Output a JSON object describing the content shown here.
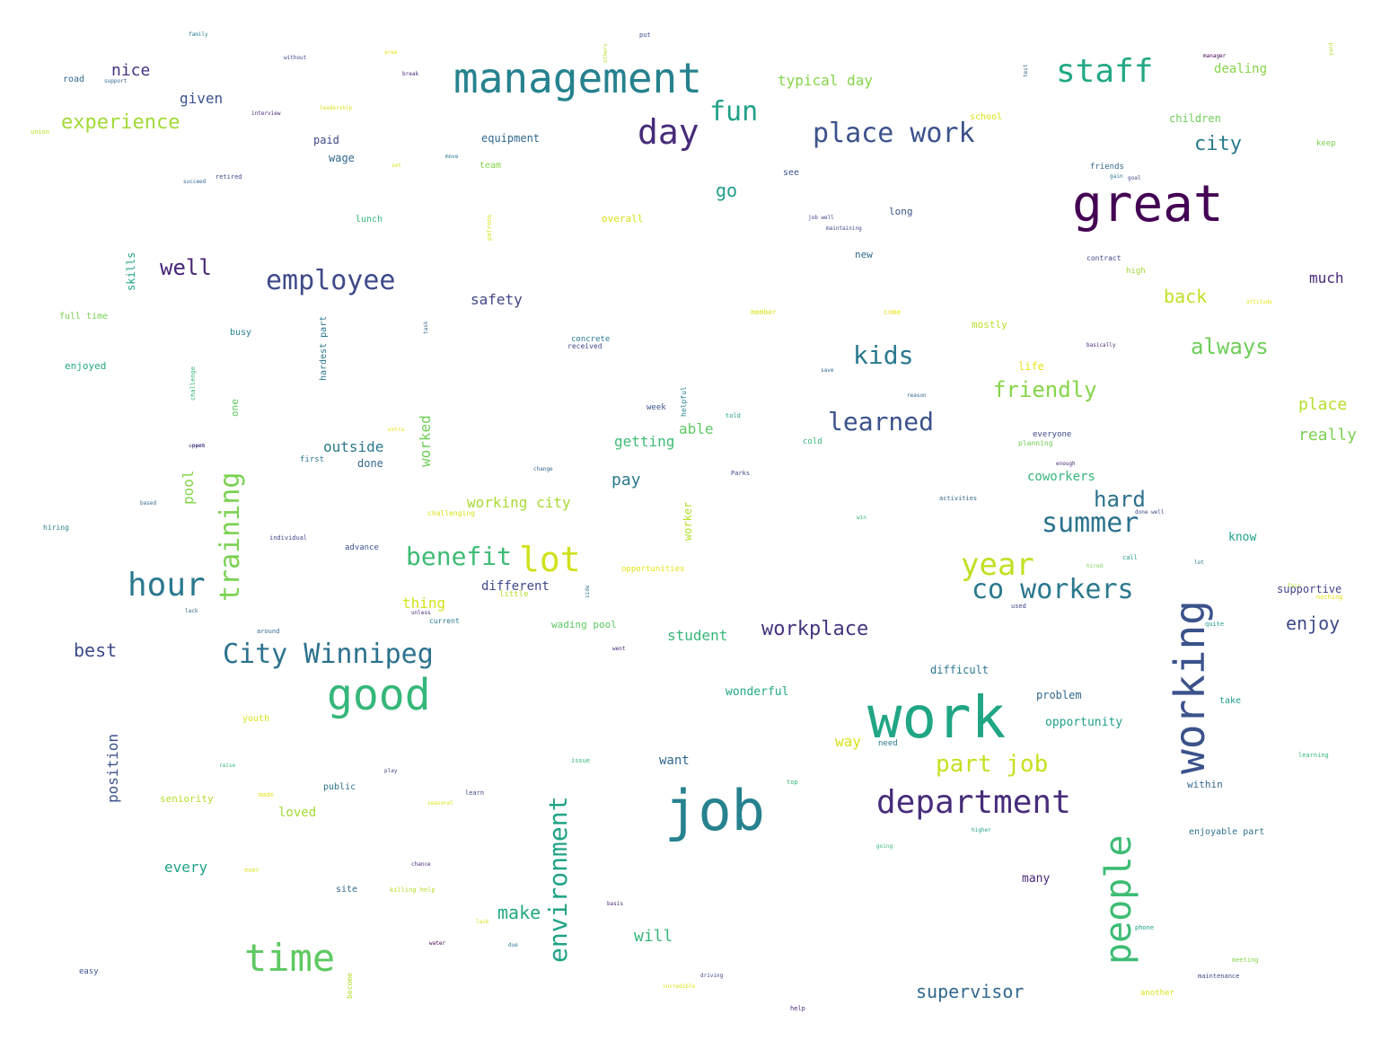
{
  "palette": {
    "dark_purple": "#440154",
    "purple": "#482878",
    "indigo": "#3e4a89",
    "blue": "#31688e",
    "teal": "#26828e",
    "cyan_green": "#1f9e89",
    "green": "#35b779",
    "light_green": "#6ece58",
    "yellow_green": "#b5de2b",
    "yellow": "#e3e418"
  },
  "words": [
    {
      "text": "work",
      "color": "#21a685"
    },
    {
      "text": "great",
      "color": "#440154"
    },
    {
      "text": "job",
      "color": "#26828e"
    },
    {
      "text": "management",
      "color": "#26828e"
    },
    {
      "text": "working",
      "color": "#3b528b"
    },
    {
      "text": "good",
      "color": "#35b779"
    },
    {
      "text": "time",
      "color": "#5ec962"
    },
    {
      "text": "department",
      "color": "#472d7b"
    },
    {
      "text": "people",
      "color": "#3dbc74"
    },
    {
      "text": "staff",
      "color": "#22a884"
    },
    {
      "text": "day",
      "color": "#472c7a"
    },
    {
      "text": "place work",
      "color": "#3b528b"
    },
    {
      "text": "co workers",
      "color": "#2a788e"
    },
    {
      "text": "City Winnipeg",
      "color": "#2c728e"
    },
    {
      "text": "hour",
      "color": "#2a788e"
    },
    {
      "text": "employee",
      "color": "#3e4a89"
    },
    {
      "text": "training",
      "color": "#7ad151"
    },
    {
      "text": "lot",
      "color": "#d0e11c"
    },
    {
      "text": "year",
      "color": "#c2df23"
    },
    {
      "text": "summer",
      "color": "#2c728e"
    },
    {
      "text": "environment",
      "color": "#20a386"
    },
    {
      "text": "fun",
      "color": "#1fa188"
    },
    {
      "text": "kids",
      "color": "#2a788e"
    },
    {
      "text": "learned",
      "color": "#3b528b"
    },
    {
      "text": "benefit",
      "color": "#3dbc74"
    },
    {
      "text": "friendly",
      "color": "#86d549"
    },
    {
      "text": "part job",
      "color": "#c8e020"
    },
    {
      "text": "well",
      "color": "#482677"
    },
    {
      "text": "experience",
      "color": "#a2da37"
    },
    {
      "text": "always",
      "color": "#6ece58"
    },
    {
      "text": "workplace",
      "color": "#46337f"
    },
    {
      "text": "hard",
      "color": "#2c728e"
    },
    {
      "text": "supervisor",
      "color": "#31688e"
    },
    {
      "text": "back",
      "color": "#c2df23"
    },
    {
      "text": "city",
      "color": "#297b8e"
    },
    {
      "text": "best",
      "color": "#3e4a89"
    },
    {
      "text": "enjoy",
      "color": "#3e4a89"
    },
    {
      "text": "place",
      "color": "#b5de2b"
    },
    {
      "text": "really",
      "color": "#7ad151"
    },
    {
      "text": "go",
      "color": "#1f9e89"
    },
    {
      "text": "nice",
      "color": "#46337f"
    },
    {
      "text": "given",
      "color": "#3b528b"
    },
    {
      "text": "safety",
      "color": "#414487"
    },
    {
      "text": "make",
      "color": "#22a884"
    },
    {
      "text": "will",
      "color": "#35b779"
    },
    {
      "text": "every",
      "color": "#1fa188"
    },
    {
      "text": "pay",
      "color": "#2a788e"
    },
    {
      "text": "getting",
      "color": "#3dbc74"
    },
    {
      "text": "able",
      "color": "#5ec962"
    },
    {
      "text": "student",
      "color": "#35b779"
    },
    {
      "text": "typical day",
      "color": "#86d549"
    },
    {
      "text": "dealing",
      "color": "#86d549"
    },
    {
      "text": "much",
      "color": "#482878"
    },
    {
      "text": "outside",
      "color": "#2a788e"
    },
    {
      "text": "done",
      "color": "#31688e"
    },
    {
      "text": "thing",
      "color": "#d2e21b"
    },
    {
      "text": "different",
      "color": "#3e4a89"
    },
    {
      "text": "working city",
      "color": "#a8db34"
    },
    {
      "text": "coworkers",
      "color": "#35b779"
    },
    {
      "text": "worked",
      "color": "#6ece58"
    },
    {
      "text": "pool",
      "color": "#86d549"
    },
    {
      "text": "position",
      "color": "#3b528b"
    },
    {
      "text": "wonderful",
      "color": "#22a884"
    },
    {
      "text": "loved",
      "color": "#a2da37"
    },
    {
      "text": "want",
      "color": "#31688e"
    },
    {
      "text": "way",
      "color": "#d8e219"
    },
    {
      "text": "know",
      "color": "#1fa188"
    },
    {
      "text": "supportive",
      "color": "#414487"
    },
    {
      "text": "problem",
      "color": "#31688e"
    },
    {
      "text": "opportunity",
      "color": "#1f9e89"
    },
    {
      "text": "difficult",
      "color": "#2a788e"
    },
    {
      "text": "children",
      "color": "#6ece58"
    },
    {
      "text": "wading pool",
      "color": "#5ec962"
    },
    {
      "text": "many",
      "color": "#482878"
    },
    {
      "text": "paid",
      "color": "#3e4a89"
    },
    {
      "text": "wage",
      "color": "#31688e"
    },
    {
      "text": "equipment",
      "color": "#31688e"
    },
    {
      "text": "road",
      "color": "#31688e"
    },
    {
      "text": "skills",
      "color": "#20a386"
    },
    {
      "text": "hardest part",
      "color": "#2a788e"
    },
    {
      "text": "full time",
      "color": "#7ad151"
    },
    {
      "text": "enjoyed",
      "color": "#22a884"
    },
    {
      "text": "busy",
      "color": "#26828e"
    },
    {
      "text": "one",
      "color": "#5ec962"
    },
    {
      "text": "lunch",
      "color": "#35b779"
    },
    {
      "text": "overall",
      "color": "#d8e219"
    },
    {
      "text": "long",
      "color": "#3b528b"
    },
    {
      "text": "new",
      "color": "#31688e"
    },
    {
      "text": "mostly",
      "color": "#b5de2b"
    },
    {
      "text": "life",
      "color": "#e5e419"
    },
    {
      "text": "concrete",
      "color": "#2a788e"
    },
    {
      "text": "received",
      "color": "#3e4a89"
    },
    {
      "text": "week",
      "color": "#3b528b"
    },
    {
      "text": "helpful",
      "color": "#26828e"
    },
    {
      "text": "everyone",
      "color": "#3e4a89"
    },
    {
      "text": "planning",
      "color": "#6ece58"
    },
    {
      "text": "team",
      "color": "#86d549"
    },
    {
      "text": "see",
      "color": "#3b528b"
    },
    {
      "text": "school",
      "color": "#d8e219"
    },
    {
      "text": "friends",
      "color": "#31688e"
    },
    {
      "text": "keep",
      "color": "#7ad151"
    },
    {
      "text": "high",
      "color": "#a2da37"
    },
    {
      "text": "contract",
      "color": "#3e4a89"
    },
    {
      "text": "within",
      "color": "#31688e"
    },
    {
      "text": "enjoyable part",
      "color": "#2c728e"
    },
    {
      "text": "take",
      "color": "#1f9e89"
    },
    {
      "text": "seniority",
      "color": "#b5de2b"
    },
    {
      "text": "public",
      "color": "#2c728e"
    },
    {
      "text": "youth",
      "color": "#d8e219"
    },
    {
      "text": "site",
      "color": "#31688e"
    },
    {
      "text": "worker",
      "color": "#b5de2b"
    },
    {
      "text": "advance",
      "color": "#3b528b"
    },
    {
      "text": "individual",
      "color": "#3e4a89"
    },
    {
      "text": "first",
      "color": "#2a788e"
    },
    {
      "text": "cold",
      "color": "#35b779"
    },
    {
      "text": "opportunities",
      "color": "#e5e419"
    },
    {
      "text": "challenging",
      "color": "#d8e219"
    },
    {
      "text": "little",
      "color": "#b5de2b"
    },
    {
      "text": "current",
      "color": "#2a788e"
    },
    {
      "text": "easy",
      "color": "#3b528b"
    },
    {
      "text": "another",
      "color": "#d8e219"
    },
    {
      "text": "maintenance",
      "color": "#3e4a89"
    },
    {
      "text": "meeting",
      "color": "#86d549"
    },
    {
      "text": "learning",
      "color": "#35b779"
    },
    {
      "text": "help",
      "color": "#482878"
    },
    {
      "text": "become",
      "color": "#b5de2b"
    },
    {
      "text": "hiring",
      "color": "#26828e"
    },
    {
      "text": "union",
      "color": "#b5de2b"
    },
    {
      "text": "support",
      "color": "#31688e"
    },
    {
      "text": "family",
      "color": "#26828e"
    },
    {
      "text": "without",
      "color": "#3e4a89"
    },
    {
      "text": "break",
      "color": "#482878"
    },
    {
      "text": "interview",
      "color": "#482878"
    },
    {
      "text": "leadership",
      "color": "#d8e219"
    },
    {
      "text": "put",
      "color": "#3e4a89"
    },
    {
      "text": "others",
      "color": "#b5de2b"
    },
    {
      "text": "manager",
      "color": "#440154"
    },
    {
      "text": "yard",
      "color": "#b5de2b"
    },
    {
      "text": "test",
      "color": "#31688e"
    },
    {
      "text": "area",
      "color": "#e5e419"
    },
    {
      "text": "succeed",
      "color": "#31688e"
    },
    {
      "text": "retired",
      "color": "#3e4a89"
    },
    {
      "text": "set",
      "color": "#d8e219"
    },
    {
      "text": "move",
      "color": "#2a788e"
    },
    {
      "text": "patrons",
      "color": "#d8e219"
    },
    {
      "text": "job well",
      "color": "#414487"
    },
    {
      "text": "maintaining",
      "color": "#3e4a89"
    },
    {
      "text": "goal",
      "color": "#3e4a89"
    },
    {
      "text": "member",
      "color": "#d8e219"
    },
    {
      "text": "come",
      "color": "#e5e419"
    },
    {
      "text": "basically",
      "color": "#482878"
    },
    {
      "text": "task",
      "color": "#31688e"
    },
    {
      "text": "challenge",
      "color": "#35b779"
    },
    {
      "text": "save",
      "color": "#31688e"
    },
    {
      "text": "reason",
      "color": "#31688e"
    },
    {
      "text": "told",
      "color": "#1f9e89"
    },
    {
      "text": "attitude",
      "color": "#e5e419"
    },
    {
      "text": "upset",
      "color": "#3e4a89"
    },
    {
      "text": "change",
      "color": "#31688e"
    },
    {
      "text": "Parks",
      "color": "#3e4a89"
    },
    {
      "text": "enough",
      "color": "#482878"
    },
    {
      "text": "activities",
      "color": "#31688e"
    },
    {
      "text": "done well",
      "color": "#3e4a89"
    },
    {
      "text": "used",
      "color": "#3e4a89"
    },
    {
      "text": "call",
      "color": "#1f9e89"
    },
    {
      "text": "quite",
      "color": "#1f9e89"
    },
    {
      "text": "lot",
      "color": "#2a788e"
    },
    {
      "text": "nothing",
      "color": "#e5e419"
    },
    {
      "text": "based",
      "color": "#31688e"
    },
    {
      "text": "lack",
      "color": "#31688e"
    },
    {
      "text": "around",
      "color": "#31688e"
    },
    {
      "text": "side",
      "color": "#2a788e"
    },
    {
      "text": "unless",
      "color": "#482878"
    },
    {
      "text": "went",
      "color": "#482878"
    },
    {
      "text": "raise",
      "color": "#35b779"
    },
    {
      "text": "made",
      "color": "#e5e419"
    },
    {
      "text": "seasonal",
      "color": "#d8e219"
    },
    {
      "text": "learn",
      "color": "#3e4a89"
    },
    {
      "text": "play",
      "color": "#414487"
    },
    {
      "text": "issue",
      "color": "#35b779"
    },
    {
      "text": "top",
      "color": "#35b779"
    },
    {
      "text": "need",
      "color": "#2a788e"
    },
    {
      "text": "going",
      "color": "#35b779"
    },
    {
      "text": "higher",
      "color": "#1f9e89"
    },
    {
      "text": "ever",
      "color": "#d8e219"
    },
    {
      "text": "chance",
      "color": "#482878"
    },
    {
      "text": "killing help",
      "color": "#b5de2b"
    },
    {
      "text": "basis",
      "color": "#482878"
    },
    {
      "text": "due",
      "color": "#2a788e"
    },
    {
      "text": "water",
      "color": "#440154"
    },
    {
      "text": "phone",
      "color": "#1f9e89"
    },
    {
      "text": "incredible",
      "color": "#d8e219"
    },
    {
      "text": "driving",
      "color": "#3e4a89"
    },
    {
      "text": "lack",
      "color": "#d8e219"
    },
    {
      "text": "hired",
      "color": "#7ad151"
    },
    {
      "text": "gain",
      "color": "#2a788e"
    },
    {
      "text": "fair",
      "color": "#b5de2b"
    },
    {
      "text": "open",
      "color": "#482878"
    },
    {
      "text": "win",
      "color": "#35b779"
    },
    {
      "text": "extra",
      "color": "#e5e419"
    }
  ]
}
